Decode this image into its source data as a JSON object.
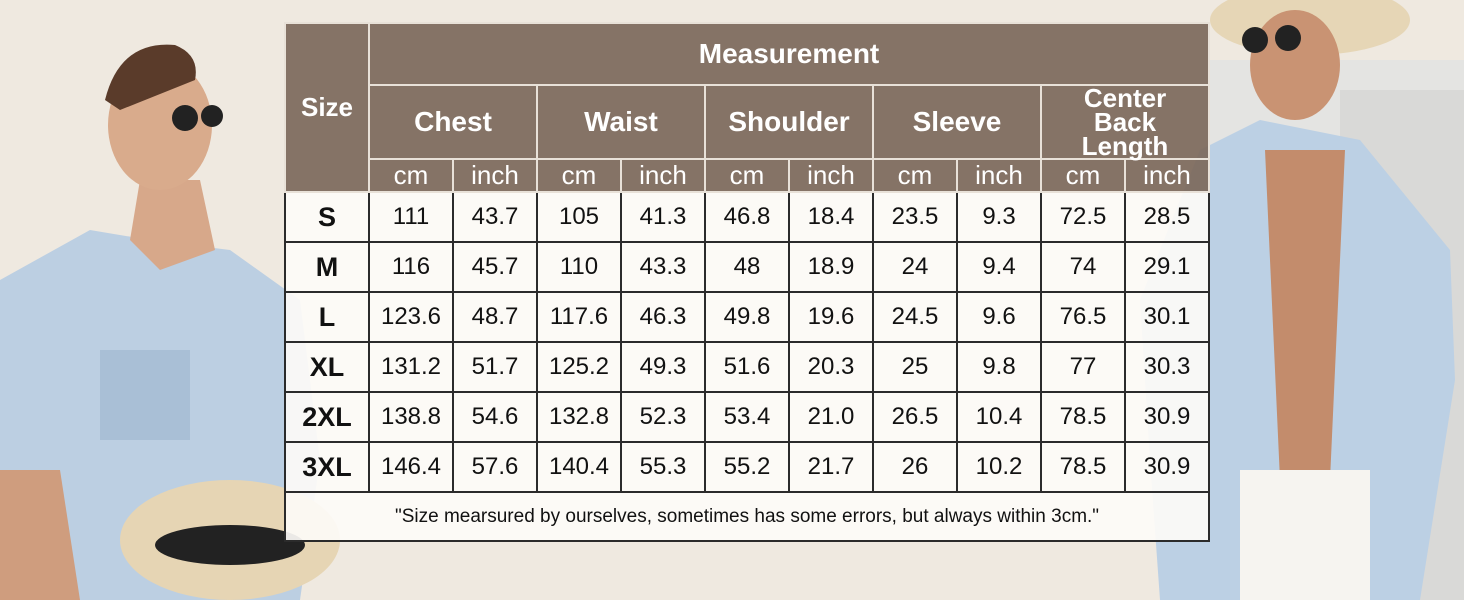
{
  "table": {
    "size_header": "Size",
    "measurement_header": "Measurement",
    "groups": [
      "Chest",
      "Waist",
      "Shoulder",
      "Sleeve",
      "Center Back Length"
    ],
    "units": [
      "cm",
      "inch"
    ],
    "rows": [
      {
        "size": "S",
        "values": [
          "111",
          "43.7",
          "105",
          "41.3",
          "46.8",
          "18.4",
          "23.5",
          "9.3",
          "72.5",
          "28.5"
        ]
      },
      {
        "size": "M",
        "values": [
          "116",
          "45.7",
          "110",
          "43.3",
          "48",
          "18.9",
          "24",
          "9.4",
          "74",
          "29.1"
        ]
      },
      {
        "size": "L",
        "values": [
          "123.6",
          "48.7",
          "117.6",
          "46.3",
          "49.8",
          "19.6",
          "24.5",
          "9.6",
          "76.5",
          "30.1"
        ]
      },
      {
        "size": "XL",
        "values": [
          "131.2",
          "51.7",
          "125.2",
          "49.3",
          "51.6",
          "20.3",
          "25",
          "9.8",
          "77",
          "30.3"
        ]
      },
      {
        "size": "2XL",
        "values": [
          "138.8",
          "54.6",
          "132.8",
          "52.3",
          "53.4",
          "21.0",
          "26.5",
          "10.4",
          "78.5",
          "30.9"
        ]
      },
      {
        "size": "3XL",
        "values": [
          "146.4",
          "57.6",
          "140.4",
          "55.3",
          "55.2",
          "21.7",
          "26",
          "10.2",
          "78.5",
          "30.9"
        ]
      }
    ],
    "note": "\"Size mearsured by ourselves, sometimes has some errors, but always within 3cm.\""
  },
  "colors": {
    "header": "#7d695c",
    "shirt": "#b9cde0",
    "background": "#efe9e0"
  }
}
